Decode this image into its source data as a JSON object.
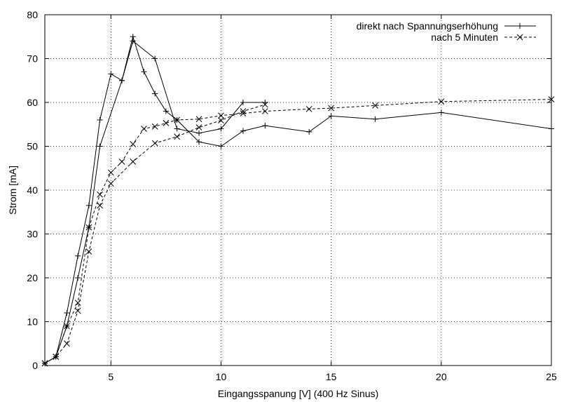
{
  "chart_data": {
    "type": "line",
    "xlabel": "Eingangsspanung [V] (400 Hz Sinus)",
    "ylabel": "Strom [mA]",
    "xlim": [
      2,
      25
    ],
    "ylim": [
      0,
      80
    ],
    "xticks": [
      5,
      10,
      15,
      20,
      25
    ],
    "yticks": [
      0,
      10,
      20,
      30,
      40,
      50,
      60,
      70,
      80
    ],
    "grid": true,
    "legend_position": "top-right",
    "series": [
      {
        "name": "direkt nach Spannungserhöhung",
        "line_style": "solid",
        "marker": "plus",
        "points": [
          [
            2.0,
            0.5
          ],
          [
            2.5,
            2.0
          ],
          [
            3.0,
            12.0
          ],
          [
            3.5,
            25.0
          ],
          [
            4.0,
            36.5
          ],
          [
            4.5,
            56.0
          ],
          [
            5.0,
            66.5
          ],
          [
            5.5,
            65.0
          ],
          [
            6.0,
            74.0
          ],
          [
            7.0,
            70.0
          ],
          [
            8.0,
            54.0
          ],
          [
            9.0,
            53.0
          ],
          [
            10.0,
            54.0
          ],
          [
            11.0,
            60.0
          ],
          [
            12.0,
            60.0
          ]
        ]
      },
      {
        "name": "direkt nach Spannungserhöhung",
        "line_style": "solid",
        "marker": "plus",
        "points": [
          [
            2.0,
            0.5
          ],
          [
            2.5,
            2.0
          ],
          [
            3.0,
            9.0
          ],
          [
            3.5,
            20.0
          ],
          [
            4.0,
            31.5
          ],
          [
            4.5,
            50.0
          ],
          [
            5.5,
            65.0
          ],
          [
            6.0,
            75.0
          ],
          [
            6.5,
            67.0
          ],
          [
            7.0,
            62.0
          ],
          [
            7.5,
            58.0
          ],
          [
            8.0,
            56.0
          ],
          [
            9.0,
            51.0
          ],
          [
            10.0,
            50.0
          ],
          [
            11.0,
            53.5
          ],
          [
            12.0,
            54.7
          ],
          [
            14.0,
            53.3
          ],
          [
            15.0,
            56.9
          ],
          [
            17.0,
            56.2
          ],
          [
            20.0,
            57.7
          ],
          [
            25.0,
            54.0
          ]
        ]
      },
      {
        "name": "nach 5 Minuten",
        "line_style": "dashed",
        "marker": "cross",
        "points": [
          [
            2.0,
            0.5
          ],
          [
            2.5,
            2.0
          ],
          [
            3.0,
            5.0
          ],
          [
            3.5,
            12.5
          ],
          [
            4.0,
            26.0
          ],
          [
            4.5,
            36.5
          ],
          [
            5.0,
            41.5
          ],
          [
            6.0,
            46.5
          ],
          [
            7.0,
            50.7
          ],
          [
            8.0,
            52.2
          ],
          [
            9.0,
            54.3
          ],
          [
            10.0,
            55.9
          ],
          [
            11.0,
            58.0
          ],
          [
            12.0,
            59.5
          ]
        ]
      },
      {
        "name": "nach 5 Minuten",
        "line_style": "dashed",
        "marker": "cross",
        "points": [
          [
            2.0,
            0.5
          ],
          [
            2.5,
            2.0
          ],
          [
            3.0,
            9.0
          ],
          [
            3.5,
            14.3
          ],
          [
            4.0,
            31.5
          ],
          [
            4.5,
            39.0
          ],
          [
            5.0,
            44.0
          ],
          [
            5.5,
            46.5
          ],
          [
            6.0,
            50.5
          ],
          [
            6.5,
            54.0
          ],
          [
            7.0,
            54.5
          ],
          [
            7.5,
            55.3
          ],
          [
            8.0,
            56.0
          ],
          [
            9.0,
            56.2
          ],
          [
            10.0,
            57.0
          ],
          [
            11.0,
            57.5
          ],
          [
            12.0,
            58.0
          ],
          [
            14.0,
            58.5
          ],
          [
            15.0,
            58.7
          ],
          [
            17.0,
            59.3
          ],
          [
            20.0,
            60.2
          ],
          [
            25.0,
            60.7
          ]
        ]
      }
    ],
    "legend": [
      {
        "label": "direkt nach Spannungserhöhung",
        "line_style": "solid",
        "marker": "plus"
      },
      {
        "label": "nach 5 Minuten",
        "line_style": "dashed",
        "marker": "cross"
      }
    ]
  }
}
